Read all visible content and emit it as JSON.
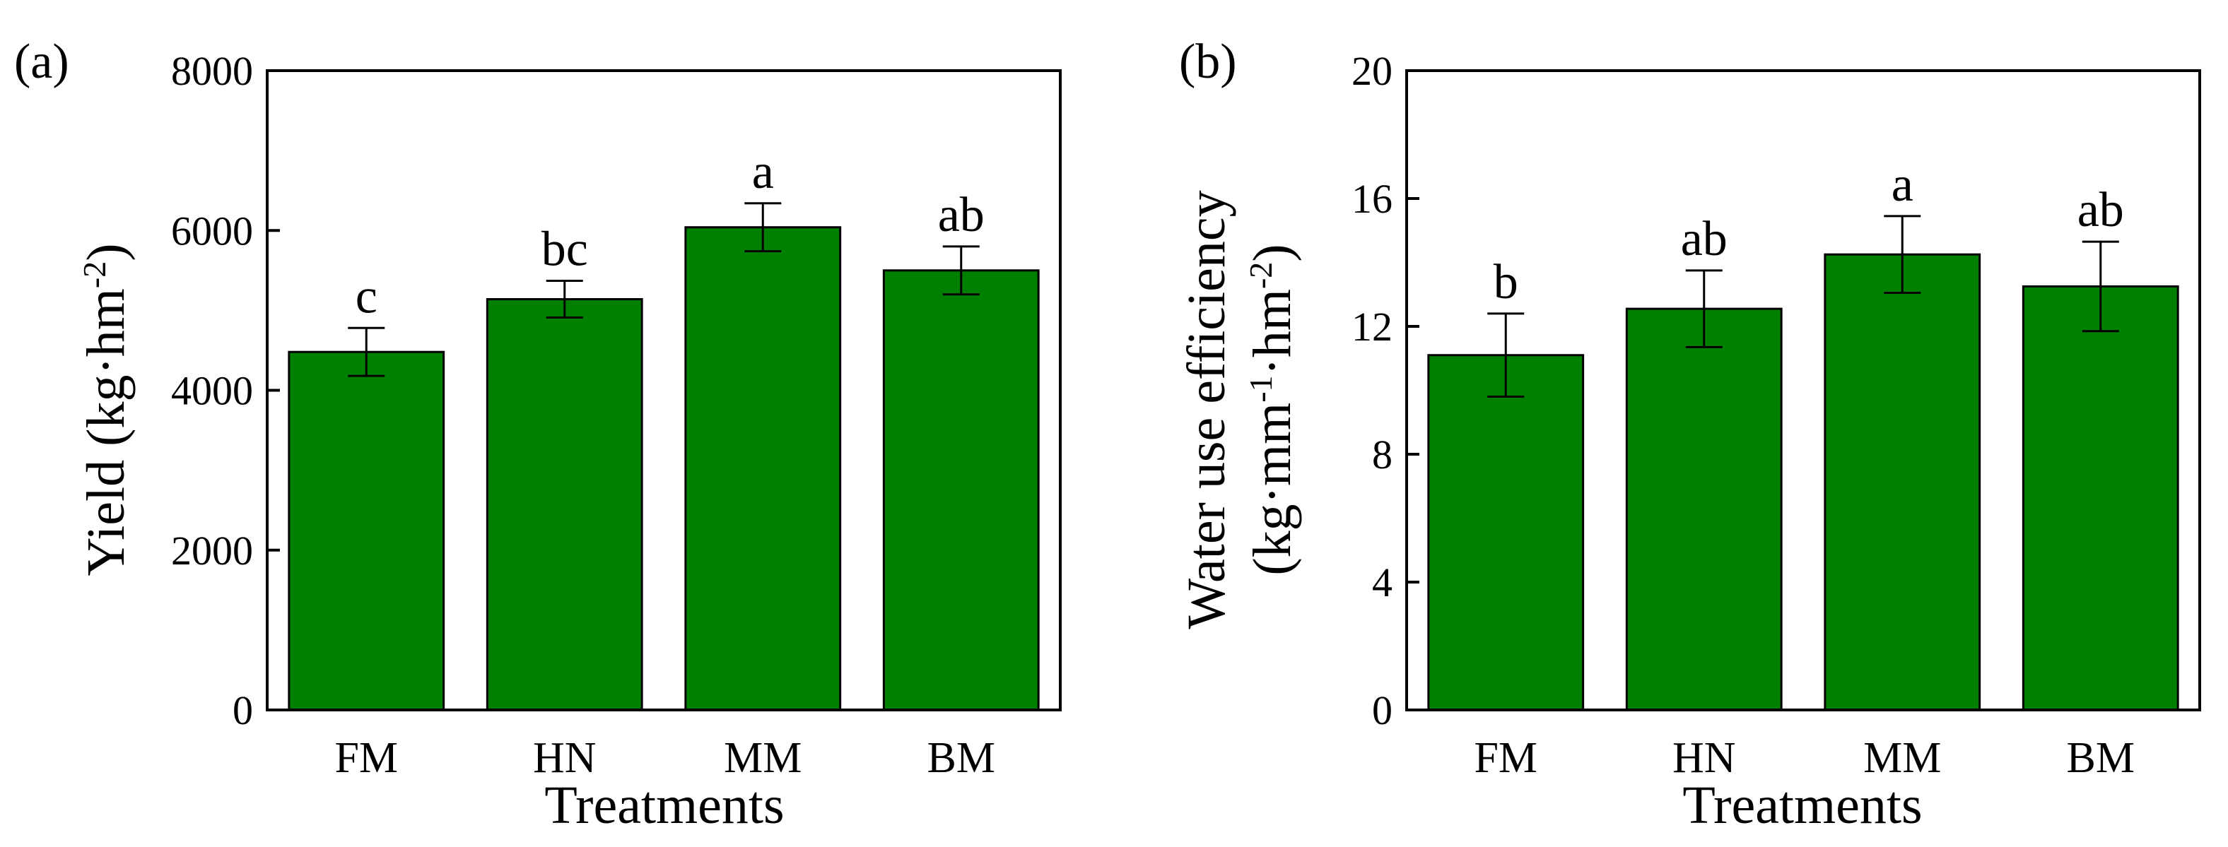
{
  "chart_data": [
    {
      "panel": "(a)",
      "type": "bar",
      "xlabel": "Treatments",
      "ylabel": "Yield (kg·hm",
      "ylabel_sup": "-2",
      "ylabel_end": ")",
      "categories": [
        "FM",
        "HN",
        "MM",
        "BM"
      ],
      "values": [
        4480,
        5140,
        6040,
        5500
      ],
      "errors": [
        300,
        230,
        300,
        300
      ],
      "significance": [
        "c",
        "bc",
        "a",
        "ab"
      ],
      "ylim": [
        0,
        8000
      ],
      "yticks": [
        0,
        2000,
        4000,
        6000,
        8000
      ],
      "bar_color": "#008000"
    },
    {
      "panel": "(b)",
      "type": "bar",
      "xlabel": "Treatments",
      "ylabel_line1": "Water use efficiency",
      "ylabel_line2_a": "(kg·mm",
      "ylabel_line2_sup1": "-1",
      "ylabel_line2_b": "·hm",
      "ylabel_line2_sup2": "-2",
      "ylabel_line2_c": ")",
      "categories": [
        "FM",
        "HN",
        "MM",
        "BM"
      ],
      "values": [
        11.1,
        12.55,
        14.25,
        13.25
      ],
      "errors": [
        1.3,
        1.2,
        1.2,
        1.4
      ],
      "significance": [
        "b",
        "ab",
        "a",
        "ab"
      ],
      "ylim": [
        0,
        20
      ],
      "yticks": [
        0,
        4,
        8,
        12,
        16,
        20
      ],
      "bar_color": "#008000"
    }
  ]
}
